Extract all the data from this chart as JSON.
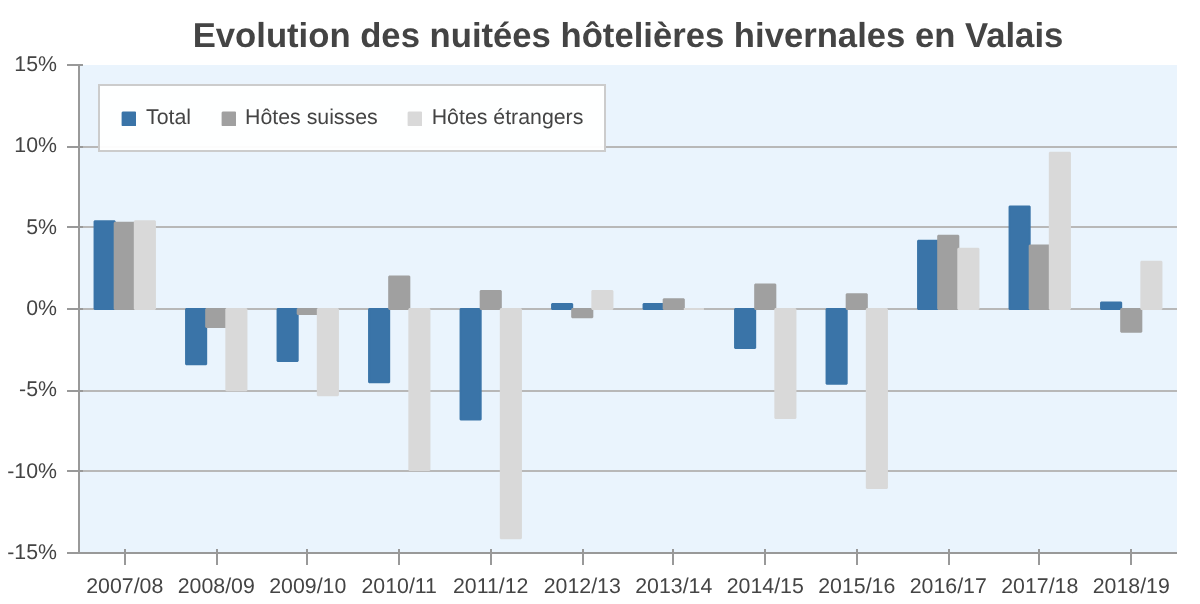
{
  "chart_data": {
    "type": "bar",
    "title": "Evolution des nuitées hôtelières hivernales en Valais",
    "categories": [
      "2007/08",
      "2008/09",
      "2009/10",
      "2010/11",
      "2011/12",
      "2012/13",
      "2013/14",
      "2014/15",
      "2015/16",
      "2016/17",
      "2017/18",
      "2018/19"
    ],
    "series": [
      {
        "name": "Total",
        "color": "#3a74a8",
        "values": [
          5.4,
          -3.4,
          -3.2,
          -4.5,
          -6.8,
          0.3,
          0.3,
          -2.4,
          -4.6,
          4.2,
          6.3,
          0.4
        ]
      },
      {
        "name": "Hôtes suisses",
        "color": "#a0a0a0",
        "values": [
          5.3,
          -1.1,
          -0.3,
          2.0,
          1.1,
          -0.5,
          0.6,
          1.5,
          0.9,
          4.5,
          3.9,
          -1.4
        ]
      },
      {
        "name": "Hôtes étrangers",
        "color": "#d9d9d9",
        "values": [
          5.4,
          -5.0,
          -5.3,
          -9.9,
          -14.1,
          1.1,
          0.0,
          -6.7,
          -11.0,
          3.7,
          9.6,
          2.9
        ]
      }
    ],
    "ylim": [
      -15,
      15
    ],
    "yticks": [
      {
        "value": -15,
        "label": "-15%"
      },
      {
        "value": -10,
        "label": "-10%"
      },
      {
        "value": -5,
        "label": "-5%"
      },
      {
        "value": 0,
        "label": "0%"
      },
      {
        "value": 5,
        "label": "5%"
      },
      {
        "value": 10,
        "label": "10%"
      },
      {
        "value": 15,
        "label": "15%"
      }
    ],
    "grid": "y",
    "legend": "top left"
  }
}
